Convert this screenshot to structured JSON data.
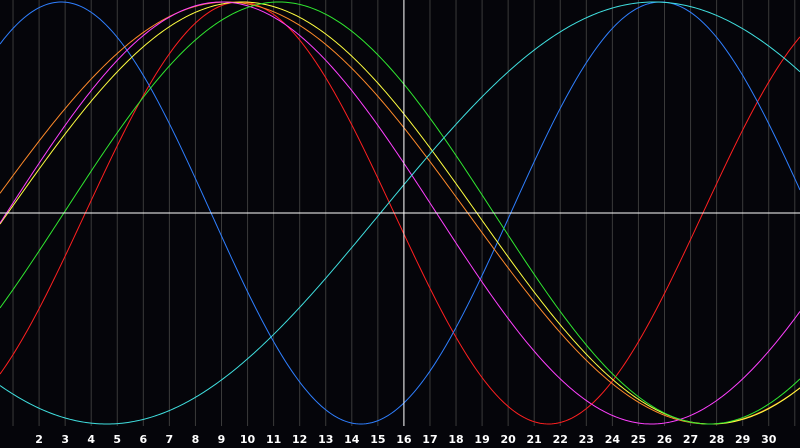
{
  "chart_data": {
    "type": "line",
    "x_ticks": [
      2,
      3,
      4,
      5,
      6,
      7,
      8,
      9,
      10,
      11,
      12,
      13,
      14,
      15,
      16,
      17,
      18,
      19,
      20,
      21,
      22,
      23,
      24,
      25,
      26,
      27,
      28,
      29,
      30
    ],
    "xlim": [
      0.5,
      31.2
    ],
    "ylim": [
      -1.0,
      1.0
    ],
    "grid": true,
    "crosshair": {
      "x": 16,
      "y": 0
    },
    "colors": {
      "background": "#05050a",
      "grid": "#3a3a3a",
      "crosshair": "#ffffff",
      "tick_label": "#ffffff"
    },
    "series": [
      {
        "color": "#ff2020",
        "peak_x": 9.7,
        "period": 23.7
      },
      {
        "color": "#2f7fff",
        "peak_x": 2.85,
        "period": 23.0
      },
      {
        "color": "#ff8a2a",
        "peak_x": 9.2,
        "period": 37.0
      },
      {
        "color": "#ffff40",
        "peak_x": 9.8,
        "period": 36.0
      },
      {
        "color": "#ff40ff",
        "peak_x": 9.0,
        "period": 33.0
      },
      {
        "color": "#30e830",
        "peak_x": 11.2,
        "period": 33.0
      },
      {
        "color": "#40e0e0",
        "peak_x": 25.6,
        "period": 42.0
      }
    ]
  }
}
